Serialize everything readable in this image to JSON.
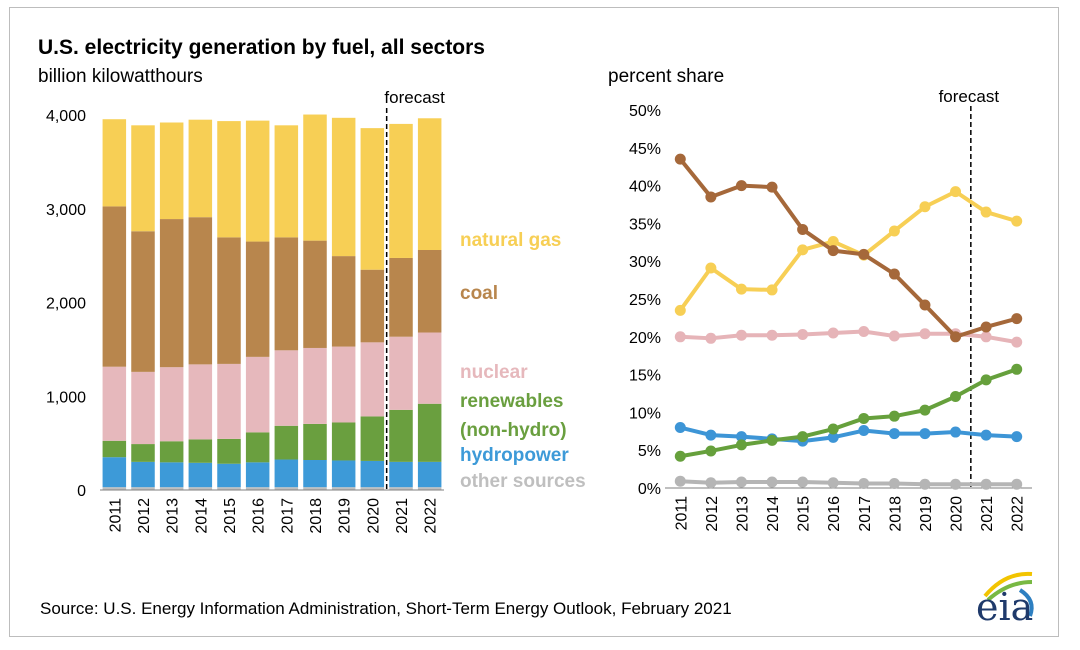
{
  "title": "U.S. electricity generation by fuel, all sectors",
  "source": "Source: U.S. Energy Information Administration, Short-Term Energy Outlook, February 2021",
  "logo_text": "eia",
  "colors": {
    "natural_gas": "#f7cf55",
    "coal": "#b8864d",
    "nuclear": "#e6b8bc",
    "renewables": "#6a9f3f",
    "hydropower": "#3d9ad8",
    "other": "#bfbfbf",
    "coal_line": "#a5683a",
    "ng_line": "#f7cf55",
    "nuclear_line": "#e6b4b8",
    "renew_line": "#66a03c",
    "hydro_line": "#3d95d6",
    "other_line": "#b5b5b5"
  },
  "legend": [
    {
      "key": "natural_gas",
      "label": "natural gas"
    },
    {
      "key": "coal",
      "label": "coal"
    },
    {
      "key": "nuclear",
      "label": "nuclear"
    },
    {
      "key": "renewables",
      "label": "renewables"
    },
    {
      "key": "renewables",
      "label": "(non-hydro)"
    },
    {
      "key": "hydropower",
      "label": "hydropower"
    },
    {
      "key": "other",
      "label": "other sources"
    }
  ],
  "chart_data": [
    {
      "type": "bar",
      "stacked": true,
      "ylabel": "billion kilowatthours",
      "ylim": [
        0,
        4000
      ],
      "yticks": [
        0,
        1000,
        2000,
        3000,
        4000
      ],
      "ytick_labels": [
        "0",
        "1,000",
        "2,000",
        "3,000",
        "4,000"
      ],
      "forecast_label": "forecast",
      "forecast_after": "2020",
      "categories": [
        "2011",
        "2012",
        "2013",
        "2014",
        "2015",
        "2016",
        "2017",
        "2018",
        "2019",
        "2020",
        "2021",
        "2022"
      ],
      "series": [
        {
          "name": "other sources",
          "key": "other",
          "values": [
            30,
            30,
            30,
            30,
            30,
            30,
            30,
            30,
            30,
            30,
            30,
            30
          ]
        },
        {
          "name": "hydropower",
          "key": "hydropower",
          "values": [
            320,
            270,
            265,
            260,
            250,
            265,
            295,
            290,
            285,
            280,
            270,
            270
          ]
        },
        {
          "name": "renewables (non-hydro)",
          "key": "renewables",
          "values": [
            175,
            190,
            225,
            250,
            265,
            320,
            360,
            385,
            405,
            475,
            555,
            620
          ]
        },
        {
          "name": "nuclear",
          "key": "nuclear",
          "values": [
            790,
            770,
            790,
            800,
            800,
            805,
            805,
            810,
            810,
            790,
            780,
            760
          ]
        },
        {
          "name": "coal",
          "key": "coal",
          "values": [
            1710,
            1500,
            1580,
            1570,
            1350,
            1230,
            1205,
            1145,
            965,
            775,
            840,
            880
          ]
        },
        {
          "name": "natural gas",
          "key": "natural_gas",
          "values": [
            930,
            1130,
            1030,
            1040,
            1240,
            1290,
            1195,
            1345,
            1475,
            1510,
            1430,
            1405
          ]
        }
      ]
    },
    {
      "type": "line",
      "ylabel": "percent share",
      "ylim": [
        0,
        50
      ],
      "yticks": [
        0,
        5,
        10,
        15,
        20,
        25,
        30,
        35,
        40,
        45,
        50
      ],
      "ytick_labels": [
        "0%",
        "5%",
        "10%",
        "15%",
        "20%",
        "25%",
        "30%",
        "35%",
        "40%",
        "45%",
        "50%"
      ],
      "forecast_label": "forecast",
      "forecast_after": "2020",
      "x": [
        "2011",
        "2012",
        "2013",
        "2014",
        "2015",
        "2016",
        "2017",
        "2018",
        "2019",
        "2020",
        "2021",
        "2022"
      ],
      "series": [
        {
          "name": "other sources",
          "key": "other_line",
          "values": [
            0.9,
            0.7,
            0.8,
            0.8,
            0.8,
            0.7,
            0.6,
            0.6,
            0.5,
            0.5,
            0.5,
            0.5
          ]
        },
        {
          "name": "hydropower",
          "key": "hydro_line",
          "values": [
            8.0,
            7.0,
            6.8,
            6.5,
            6.2,
            6.7,
            7.6,
            7.2,
            7.2,
            7.4,
            7.0,
            6.8
          ]
        },
        {
          "name": "renewables (non-hydro)",
          "key": "renew_line",
          "values": [
            4.2,
            4.9,
            5.7,
            6.3,
            6.8,
            7.8,
            9.2,
            9.5,
            10.3,
            12.1,
            14.3,
            15.7
          ]
        },
        {
          "name": "nuclear",
          "key": "nuclear_line",
          "values": [
            20.0,
            19.8,
            20.2,
            20.2,
            20.3,
            20.5,
            20.7,
            20.1,
            20.4,
            20.4,
            20.0,
            19.3
          ]
        },
        {
          "name": "natural gas",
          "key": "ng_line",
          "values": [
            23.5,
            29.1,
            26.3,
            26.2,
            31.5,
            32.6,
            30.8,
            34.0,
            37.2,
            39.2,
            36.5,
            35.3
          ]
        },
        {
          "name": "coal",
          "key": "coal_line",
          "values": [
            43.5,
            38.5,
            40.0,
            39.8,
            34.2,
            31.4,
            30.9,
            28.3,
            24.2,
            20.0,
            21.3,
            22.4
          ]
        }
      ]
    }
  ]
}
